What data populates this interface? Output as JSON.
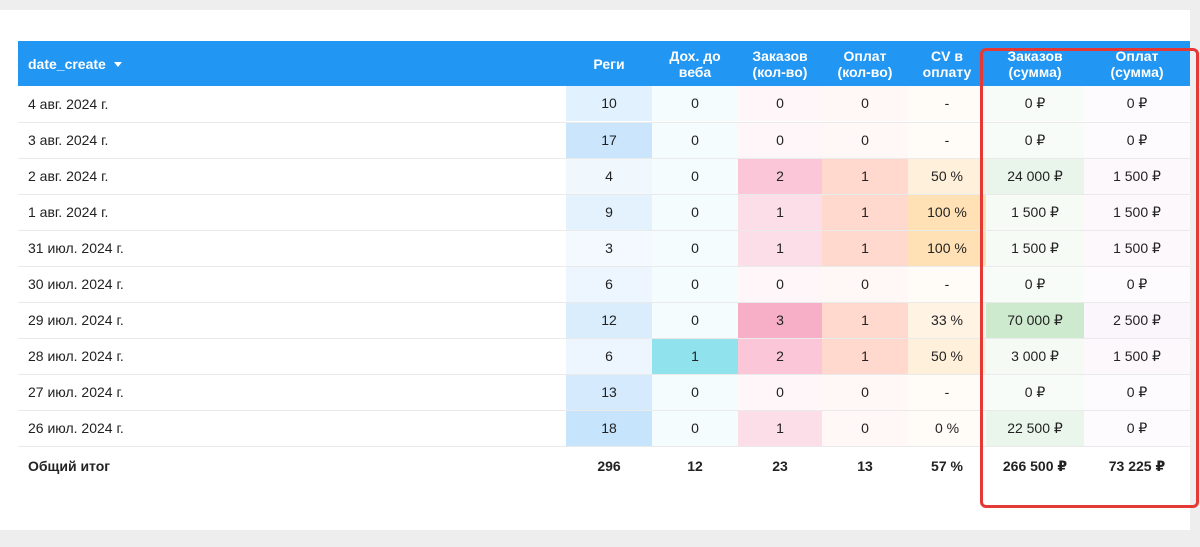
{
  "table": {
    "headers": {
      "date": "date_create",
      "regi": "Реги",
      "dokh": "Дох. до веба",
      "zakazov_kol": "Заказов (кол-во)",
      "oplat_kol": "Оплат (кол-во)",
      "cv": "CV в оплату",
      "zakazov_sum": "Заказов (сумма)",
      "oplat_sum": "Оплат (сумма)"
    },
    "rows": [
      {
        "date": "4 авг. 2024 г.",
        "regi": "10",
        "dokh": "0",
        "zakazov_kol": "0",
        "oplat_kol": "0",
        "cv": "-",
        "zakazov_sum": "0 ₽",
        "oplat_sum": "0 ₽"
      },
      {
        "date": "3 авг. 2024 г.",
        "regi": "17",
        "dokh": "0",
        "zakazov_kol": "0",
        "oplat_kol": "0",
        "cv": "-",
        "zakazov_sum": "0 ₽",
        "oplat_sum": "0 ₽"
      },
      {
        "date": "2 авг. 2024 г.",
        "regi": "4",
        "dokh": "0",
        "zakazov_kol": "2",
        "oplat_kol": "1",
        "cv": "50 %",
        "zakazov_sum": "24 000 ₽",
        "oplat_sum": "1 500 ₽"
      },
      {
        "date": "1 авг. 2024 г.",
        "regi": "9",
        "dokh": "0",
        "zakazov_kol": "1",
        "oplat_kol": "1",
        "cv": "100 %",
        "zakazov_sum": "1 500 ₽",
        "oplat_sum": "1 500 ₽"
      },
      {
        "date": "31 июл. 2024 г.",
        "regi": "3",
        "dokh": "0",
        "zakazov_kol": "1",
        "oplat_kol": "1",
        "cv": "100 %",
        "zakazov_sum": "1 500 ₽",
        "oplat_sum": "1 500 ₽"
      },
      {
        "date": "30 июл. 2024 г.",
        "regi": "6",
        "dokh": "0",
        "zakazov_kol": "0",
        "oplat_kol": "0",
        "cv": "-",
        "zakazov_sum": "0 ₽",
        "oplat_sum": "0 ₽"
      },
      {
        "date": "29 июл. 2024 г.",
        "regi": "12",
        "dokh": "0",
        "zakazov_kol": "3",
        "oplat_kol": "1",
        "cv": "33 %",
        "zakazov_sum": "70 000 ₽",
        "oplat_sum": "2 500 ₽"
      },
      {
        "date": "28 июл. 2024 г.",
        "regi": "6",
        "dokh": "1",
        "zakazov_kol": "2",
        "oplat_kol": "1",
        "cv": "50 %",
        "zakazov_sum": "3 000 ₽",
        "oplat_sum": "1 500 ₽"
      },
      {
        "date": "27 июл. 2024 г.",
        "regi": "13",
        "dokh": "0",
        "zakazov_kol": "0",
        "oplat_kol": "0",
        "cv": "-",
        "zakazov_sum": "0 ₽",
        "oplat_sum": "0 ₽"
      },
      {
        "date": "26 июл. 2024 г.",
        "regi": "18",
        "dokh": "0",
        "zakazov_kol": "1",
        "oplat_kol": "0",
        "cv": "0 %",
        "zakazov_sum": "22 500 ₽",
        "oplat_sum": "0 ₽"
      }
    ],
    "total": {
      "label": "Общий итог",
      "regi": "296",
      "dokh": "12",
      "zakazov_kol": "23",
      "oplat_kol": "13",
      "cv": "57 %",
      "zakazov_sum": "266 500 ₽",
      "oplat_sum": "73 225 ₽"
    }
  },
  "colors": {
    "header_bg": "#2196f3",
    "highlight_border": "#e53935",
    "regi": "#90caf9",
    "dokh": "#4dd0e1",
    "zakazov_kol": "#f06292",
    "oplat_kol": "#ff8a65",
    "cv": "#ffcc80",
    "zakazov_sum": "#81c784",
    "oplat_sum": "#e1bee7"
  },
  "heat": {
    "regi": [
      0.28,
      0.55,
      0.1,
      0.24,
      0.06,
      0.14,
      0.38,
      0.14,
      0.42,
      0.6
    ],
    "dokh": [
      0,
      0,
      0,
      0,
      0,
      0,
      0,
      0.75,
      0,
      0
    ],
    "zakazov_kol": [
      0,
      0,
      0.4,
      0.2,
      0.2,
      0,
      0.6,
      0.4,
      0,
      0.2
    ],
    "oplat_kol": [
      0,
      0,
      0.35,
      0.35,
      0.35,
      0,
      0.35,
      0.35,
      0,
      0
    ],
    "cv": [
      0,
      0,
      0.3,
      0.7,
      0.7,
      0,
      0.2,
      0.3,
      0,
      0
    ],
    "zakazov_sum": [
      0,
      0,
      0.15,
      0.02,
      0.02,
      0,
      0.45,
      0.03,
      0,
      0.14
    ],
    "oplat_sum": [
      0,
      0,
      0.06,
      0.06,
      0.06,
      0,
      0.1,
      0.06,
      0,
      0
    ]
  }
}
